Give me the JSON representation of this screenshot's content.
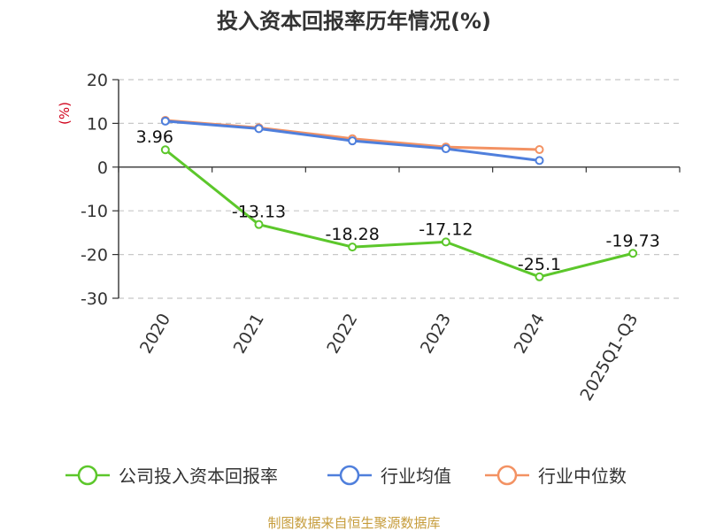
{
  "chart_data": {
    "type": "line",
    "title": "投入资本回报率历年情况(%)",
    "ylabel": "(%)",
    "categories": [
      "2020",
      "2021",
      "2022",
      "2023",
      "2024",
      "2025Q1-Q3"
    ],
    "ylim": [
      -30,
      20
    ],
    "yticks": [
      20,
      10,
      0,
      -10,
      -20,
      -30
    ],
    "grid": true,
    "legend_position": "bottom",
    "series": [
      {
        "name": "公司投入资本回报率",
        "color": "#5cc72b",
        "values": [
          3.96,
          -13.13,
          -18.28,
          -17.12,
          -25.1,
          -19.73
        ],
        "labels": [
          "3.96",
          "-13.13",
          "-18.28",
          "-17.12",
          "-25.1",
          "-19.73"
        ]
      },
      {
        "name": "行业均值",
        "color": "#4f7fdc",
        "values": [
          10.5,
          8.8,
          6.0,
          4.2,
          1.5,
          null
        ]
      },
      {
        "name": "行业中位数",
        "color": "#f39263",
        "values": [
          10.7,
          9.0,
          6.5,
          4.6,
          4.0,
          null
        ]
      }
    ],
    "source": "制图数据来自恒生聚源数据库"
  }
}
